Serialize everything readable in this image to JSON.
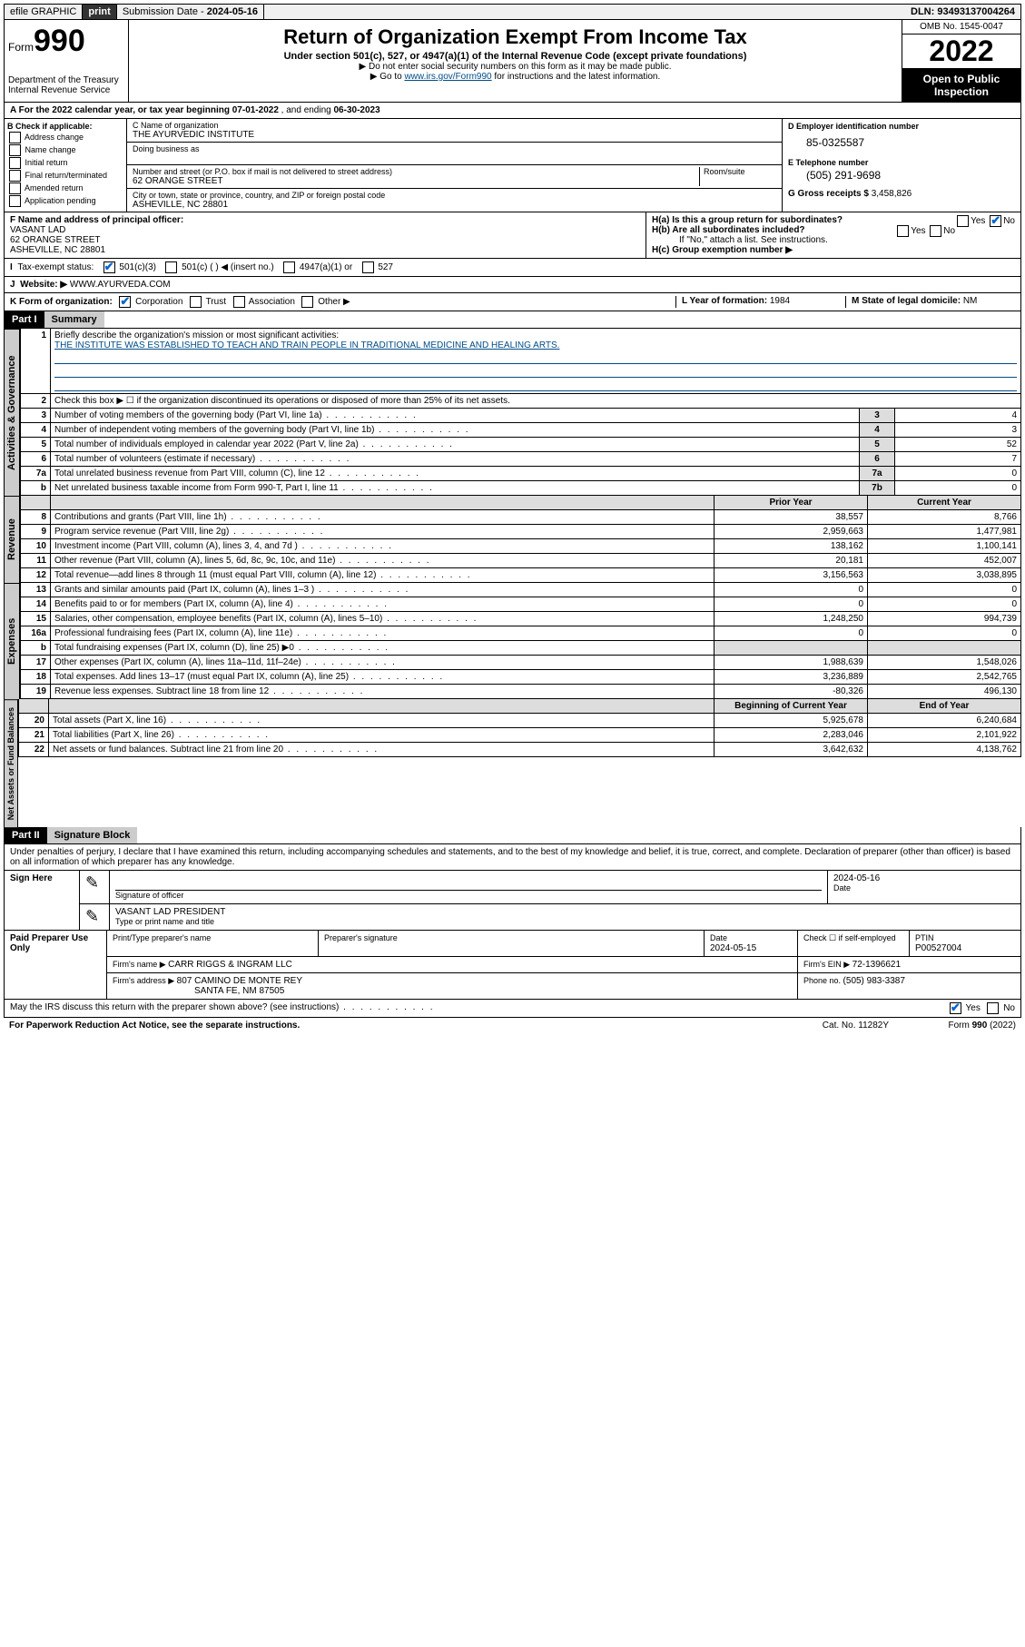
{
  "topbar": {
    "efile": "efile GRAPHIC",
    "print": "print",
    "subdate_label": "Submission Date - ",
    "subdate": "2024-05-16",
    "dln_label": "DLN: ",
    "dln": "93493137004264"
  },
  "header": {
    "form_label": "Form",
    "form_num": "990",
    "dept1": "Department of the Treasury",
    "dept2": "Internal Revenue Service",
    "title": "Return of Organization Exempt From Income Tax",
    "sub": "Under section 501(c), 527, or 4947(a)(1) of the Internal Revenue Code (except private foundations)",
    "arrow1": "▶ Do not enter social security numbers on this form as it may be made public.",
    "arrow2_pre": "▶ Go to ",
    "arrow2_link": "www.irs.gov/Form990",
    "arrow2_post": " for instructions and the latest information.",
    "omb": "OMB No. 1545-0047",
    "year": "2022",
    "inspection": "Open to Public Inspection"
  },
  "a_line": {
    "pre": "A For the 2022 calendar year, or tax year beginning ",
    "begin": "07-01-2022",
    "mid": "   , and ending ",
    "end": "06-30-2023"
  },
  "b": {
    "hdr": "B Check if applicable:",
    "opts": [
      "Address change",
      "Name change",
      "Initial return",
      "Final return/terminated",
      "Amended return",
      "Application pending"
    ]
  },
  "c": {
    "name_lbl": "C Name of organization",
    "name": "THE AYURVEDIC INSTITUTE",
    "dba_lbl": "Doing business as",
    "addr_lbl": "Number and street (or P.O. box if mail is not delivered to street address)",
    "room_lbl": "Room/suite",
    "addr": "62 ORANGE STREET",
    "city_lbl": "City or town, state or province, country, and ZIP or foreign postal code",
    "city": "ASHEVILLE, NC  28801"
  },
  "d": {
    "lbl": "D Employer identification number",
    "val": "85-0325587"
  },
  "e": {
    "lbl": "E Telephone number",
    "val": "(505) 291-9698"
  },
  "g": {
    "lbl": "G Gross receipts $ ",
    "val": "3,458,826"
  },
  "f": {
    "lbl": "F  Name and address of principal officer:",
    "name": "VASANT LAD",
    "addr1": "62 ORANGE STREET",
    "addr2": "ASHEVILLE, NC  28801"
  },
  "h": {
    "a_lbl": "H(a)  Is this a group return for subordinates?",
    "b_lbl": "H(b)  Are all subordinates included?",
    "note": "If \"No,\" attach a list. See instructions.",
    "c_lbl": "H(c)  Group exemption number ▶",
    "yes": "Yes",
    "no": "No"
  },
  "i": {
    "lbl": "Tax-exempt status:",
    "o1": "501(c)(3)",
    "o2": "501(c) (  ) ◀ (insert no.)",
    "o3": "4947(a)(1) or",
    "o4": "527"
  },
  "j": {
    "lbl": "Website: ▶",
    "val": "WWW.AYURVEDA.COM"
  },
  "k": {
    "lbl": "K Form of organization:",
    "o1": "Corporation",
    "o2": "Trust",
    "o3": "Association",
    "o4": "Other ▶"
  },
  "l": {
    "lbl": "L Year of formation: ",
    "val": "1984"
  },
  "m": {
    "lbl": "M State of legal domicile: ",
    "val": "NM"
  },
  "part1": {
    "hdr": "Part I",
    "title": "Summary"
  },
  "summary": {
    "line1_lbl": "Briefly describe the organization's mission or most significant activities:",
    "mission": "THE INSTITUTE WAS ESTABLISHED TO TEACH AND TRAIN PEOPLE IN TRADITIONAL MEDICINE AND HEALING ARTS.",
    "line2": "Check this box ▶ ☐  if the organization discontinued its operations or disposed of more than 25% of its net assets.",
    "rows_gov": [
      {
        "n": "3",
        "t": "Number of voting members of the governing body (Part VI, line 1a)",
        "box": "3",
        "v": "4"
      },
      {
        "n": "4",
        "t": "Number of independent voting members of the governing body (Part VI, line 1b)",
        "box": "4",
        "v": "3"
      },
      {
        "n": "5",
        "t": "Total number of individuals employed in calendar year 2022 (Part V, line 2a)",
        "box": "5",
        "v": "52"
      },
      {
        "n": "6",
        "t": "Total number of volunteers (estimate if necessary)",
        "box": "6",
        "v": "7"
      },
      {
        "n": "7a",
        "t": "Total unrelated business revenue from Part VIII, column (C), line 12",
        "box": "7a",
        "v": "0"
      },
      {
        "n": "b",
        "t": "Net unrelated business taxable income from Form 990-T, Part I, line 11",
        "box": "7b",
        "v": "0"
      }
    ],
    "col_prior": "Prior Year",
    "col_current": "Current Year",
    "rows_rev": [
      {
        "n": "8",
        "t": "Contributions and grants (Part VIII, line 1h)",
        "p": "38,557",
        "c": "8,766"
      },
      {
        "n": "9",
        "t": "Program service revenue (Part VIII, line 2g)",
        "p": "2,959,663",
        "c": "1,477,981"
      },
      {
        "n": "10",
        "t": "Investment income (Part VIII, column (A), lines 3, 4, and 7d )",
        "p": "138,162",
        "c": "1,100,141"
      },
      {
        "n": "11",
        "t": "Other revenue (Part VIII, column (A), lines 5, 6d, 8c, 9c, 10c, and 11e)",
        "p": "20,181",
        "c": "452,007"
      },
      {
        "n": "12",
        "t": "Total revenue—add lines 8 through 11 (must equal Part VIII, column (A), line 12)",
        "p": "3,156,563",
        "c": "3,038,895"
      }
    ],
    "rows_exp": [
      {
        "n": "13",
        "t": "Grants and similar amounts paid (Part IX, column (A), lines 1–3 )",
        "p": "0",
        "c": "0"
      },
      {
        "n": "14",
        "t": "Benefits paid to or for members (Part IX, column (A), line 4)",
        "p": "0",
        "c": "0"
      },
      {
        "n": "15",
        "t": "Salaries, other compensation, employee benefits (Part IX, column (A), lines 5–10)",
        "p": "1,248,250",
        "c": "994,739"
      },
      {
        "n": "16a",
        "t": "Professional fundraising fees (Part IX, column (A), line 11e)",
        "p": "0",
        "c": "0"
      },
      {
        "n": "b",
        "t": "Total fundraising expenses (Part IX, column (D), line 25) ▶0",
        "p": "",
        "c": "",
        "shade": true
      },
      {
        "n": "17",
        "t": "Other expenses (Part IX, column (A), lines 11a–11d, 11f–24e)",
        "p": "1,988,639",
        "c": "1,548,026"
      },
      {
        "n": "18",
        "t": "Total expenses. Add lines 13–17 (must equal Part IX, column (A), line 25)",
        "p": "3,236,889",
        "c": "2,542,765"
      },
      {
        "n": "19",
        "t": "Revenue less expenses. Subtract line 18 from line 12",
        "p": "-80,326",
        "c": "496,130"
      }
    ],
    "col_begin": "Beginning of Current Year",
    "col_end": "End of Year",
    "rows_net": [
      {
        "n": "20",
        "t": "Total assets (Part X, line 16)",
        "p": "5,925,678",
        "c": "6,240,684"
      },
      {
        "n": "21",
        "t": "Total liabilities (Part X, line 26)",
        "p": "2,283,046",
        "c": "2,101,922"
      },
      {
        "n": "22",
        "t": "Net assets or fund balances. Subtract line 21 from line 20",
        "p": "3,642,632",
        "c": "4,138,762"
      }
    ]
  },
  "part2": {
    "hdr": "Part II",
    "title": "Signature Block"
  },
  "sig": {
    "penalties": "Under penalties of perjury, I declare that I have examined this return, including accompanying schedules and statements, and to the best of my knowledge and belief, it is true, correct, and complete. Declaration of preparer (other than officer) is based on all information of which preparer has any knowledge.",
    "sign_here": "Sign Here",
    "sig_officer": "Signature of officer",
    "date": "Date",
    "sig_date": "2024-05-16",
    "officer_name": "VASANT LAD PRESIDENT",
    "type_name": "Type or print name and title",
    "paid": "Paid Preparer Use Only",
    "prep_name_lbl": "Print/Type preparer's name",
    "prep_sig_lbl": "Preparer's signature",
    "prep_date_lbl": "Date",
    "prep_date": "2024-05-15",
    "check_lbl": "Check ☐ if self-employed",
    "ptin_lbl": "PTIN",
    "ptin": "P00527004",
    "firm_name_lbl": "Firm's name   ▶ ",
    "firm_name": "CARR RIGGS & INGRAM LLC",
    "firm_ein_lbl": "Firm's EIN ▶ ",
    "firm_ein": "72-1396621",
    "firm_addr_lbl": "Firm's address ▶ ",
    "firm_addr1": "807 CAMINO DE MONTE REY",
    "firm_addr2": "SANTA FE, NM  87505",
    "phone_lbl": "Phone no. ",
    "phone": "(505) 983-3387",
    "discuss": "May the IRS discuss this return with the preparer shown above? (see instructions)",
    "yes": "Yes",
    "no": "No"
  },
  "footer": {
    "pra": "For Paperwork Reduction Act Notice, see the separate instructions.",
    "cat": "Cat. No. 11282Y",
    "form": "Form 990 (2022)"
  },
  "vtabs": {
    "gov": "Activities & Governance",
    "rev": "Revenue",
    "exp": "Expenses",
    "net": "Net Assets or Fund Balances"
  }
}
